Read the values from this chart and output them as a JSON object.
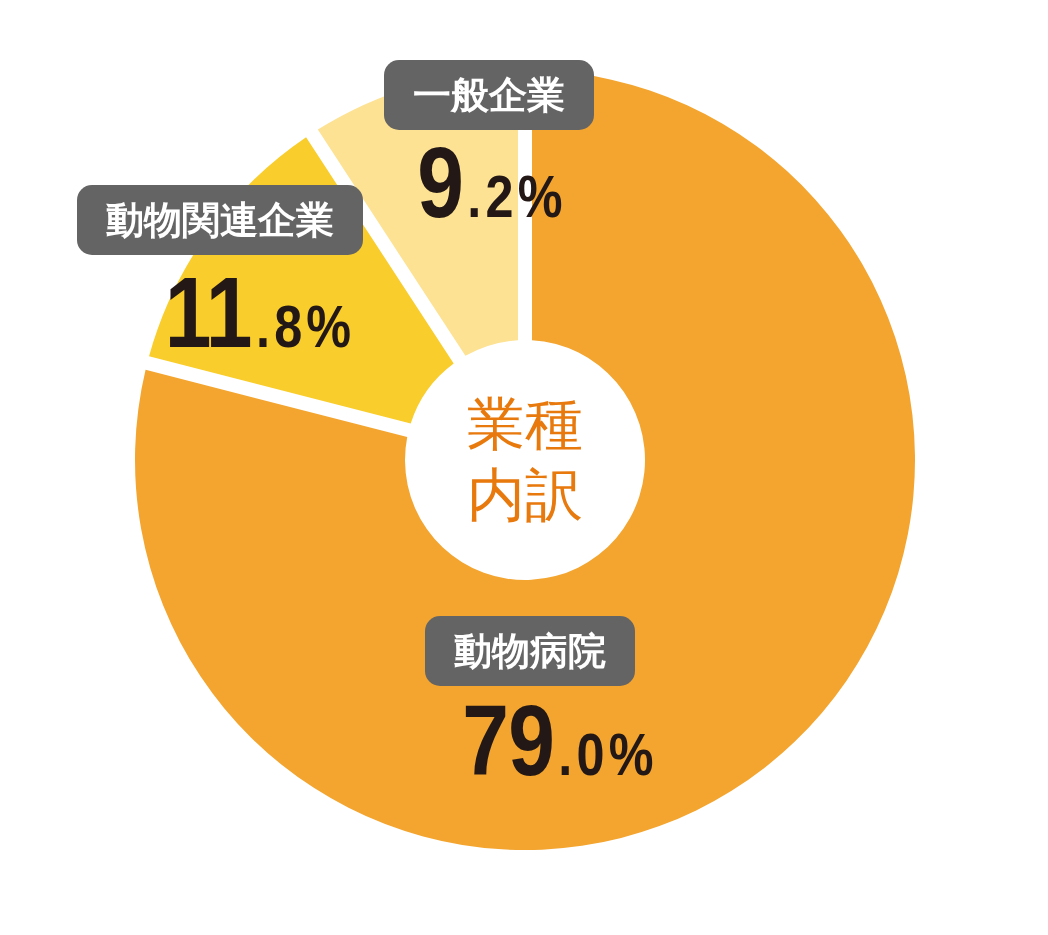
{
  "chart_data": {
    "type": "donut",
    "title": "業種内訳",
    "categories": [
      "動物病院",
      "動物関連企業",
      "一般企業"
    ],
    "values": [
      79.0,
      11.8,
      9.2
    ],
    "colors": [
      "#f3a52f",
      "#f9cd2b",
      "#fde294"
    ],
    "value_labels": [
      "79.0%",
      "11.8%",
      "9.2%"
    ]
  }
}
